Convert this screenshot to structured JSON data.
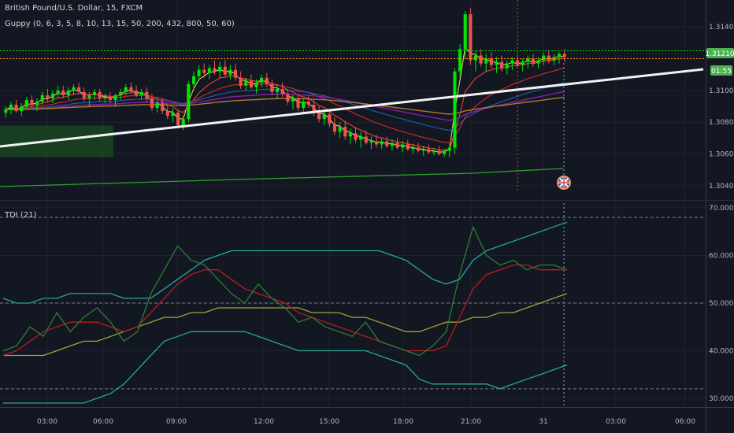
{
  "chart_data": [
    {
      "type": "candlestick",
      "title": "British Pound/U.S. Dollar, 15, FXCM",
      "indicator_label": "Guppy (0, 6, 3, 5, 8, 10, 13, 15, 50, 200, 432, 800, 50, 60)",
      "y_ticks": [
        "1.31400",
        "1.31000",
        "1.30800",
        "1.30600",
        "1.30400"
      ],
      "ylim": [
        1.3033,
        1.3155
      ],
      "price_label": "1.31210",
      "countdown_label": "01:55",
      "current_price": 1.3121,
      "x_ticks": [
        "03:00",
        "06:00",
        "09:00",
        "12:00",
        "15:00",
        "18:00",
        "21:00",
        "31",
        "03:00",
        "06:00"
      ],
      "candles_ohlc": [
        [
          1.3086,
          1.309,
          1.3083,
          1.3088
        ],
        [
          1.3088,
          1.3093,
          1.3085,
          1.3091
        ],
        [
          1.3091,
          1.3094,
          1.3086,
          1.3087
        ],
        [
          1.3087,
          1.3092,
          1.3084,
          1.309
        ],
        [
          1.309,
          1.3096,
          1.3088,
          1.3094
        ],
        [
          1.3094,
          1.3097,
          1.3089,
          1.3091
        ],
        [
          1.3091,
          1.3095,
          1.3087,
          1.3093
        ],
        [
          1.3093,
          1.3099,
          1.3091,
          1.3097
        ],
        [
          1.3097,
          1.3101,
          1.3093,
          1.3095
        ],
        [
          1.3095,
          1.31,
          1.3092,
          1.3098
        ],
        [
          1.3098,
          1.3103,
          1.3095,
          1.31
        ],
        [
          1.31,
          1.3103,
          1.3095,
          1.3097
        ],
        [
          1.3097,
          1.3102,
          1.3094,
          1.31
        ],
        [
          1.31,
          1.3104,
          1.3097,
          1.3102
        ],
        [
          1.3102,
          1.3105,
          1.3098,
          1.3099
        ],
        [
          1.3099,
          1.3102,
          1.3093,
          1.3095
        ],
        [
          1.3095,
          1.3099,
          1.309,
          1.3097
        ],
        [
          1.3097,
          1.3101,
          1.3094,
          1.3099
        ],
        [
          1.3099,
          1.3101,
          1.3093,
          1.3095
        ],
        [
          1.3095,
          1.3098,
          1.3092,
          1.3096
        ],
        [
          1.3096,
          1.3099,
          1.3092,
          1.3094
        ],
        [
          1.3094,
          1.3098,
          1.309,
          1.3097
        ],
        [
          1.3097,
          1.3101,
          1.3094,
          1.3099
        ],
        [
          1.3099,
          1.3104,
          1.3097,
          1.3102
        ],
        [
          1.3102,
          1.3105,
          1.3098,
          1.31
        ],
        [
          1.31,
          1.3103,
          1.3096,
          1.3097
        ],
        [
          1.3097,
          1.3101,
          1.3094,
          1.3099
        ],
        [
          1.3099,
          1.3102,
          1.3093,
          1.3095
        ],
        [
          1.3095,
          1.3098,
          1.3087,
          1.3089
        ],
        [
          1.3089,
          1.3094,
          1.3086,
          1.3092
        ],
        [
          1.3092,
          1.3095,
          1.3085,
          1.3087
        ],
        [
          1.3087,
          1.3091,
          1.3082,
          1.3084
        ],
        [
          1.3084,
          1.3089,
          1.308,
          1.3086
        ],
        [
          1.3086,
          1.3088,
          1.3076,
          1.3078
        ],
        [
          1.3078,
          1.3084,
          1.3075,
          1.3082
        ],
        [
          1.3082,
          1.3106,
          1.308,
          1.3104
        ],
        [
          1.3104,
          1.3112,
          1.3101,
          1.3109
        ],
        [
          1.3109,
          1.3116,
          1.3106,
          1.3113
        ],
        [
          1.3113,
          1.3117,
          1.3108,
          1.3111
        ],
        [
          1.3111,
          1.3116,
          1.3107,
          1.3114
        ],
        [
          1.3114,
          1.3119,
          1.311,
          1.3112
        ],
        [
          1.3112,
          1.3118,
          1.3108,
          1.3115
        ],
        [
          1.3115,
          1.3119,
          1.3109,
          1.311
        ],
        [
          1.311,
          1.3116,
          1.3107,
          1.3113
        ],
        [
          1.3113,
          1.3117,
          1.3106,
          1.3108
        ],
        [
          1.3108,
          1.3112,
          1.3101,
          1.3103
        ],
        [
          1.3103,
          1.3108,
          1.31,
          1.3106
        ],
        [
          1.3106,
          1.311,
          1.3101,
          1.3102
        ],
        [
          1.3102,
          1.3107,
          1.3098,
          1.3105
        ],
        [
          1.3105,
          1.311,
          1.3102,
          1.3108
        ],
        [
          1.3108,
          1.3111,
          1.3102,
          1.3104
        ],
        [
          1.3104,
          1.3107,
          1.3097,
          1.3099
        ],
        [
          1.3099,
          1.3104,
          1.3095,
          1.3101
        ],
        [
          1.3101,
          1.3105,
          1.3096,
          1.3098
        ],
        [
          1.3098,
          1.3101,
          1.3091,
          1.3093
        ],
        [
          1.3093,
          1.3097,
          1.3088,
          1.3095
        ],
        [
          1.3095,
          1.3098,
          1.3087,
          1.3089
        ],
        [
          1.3089,
          1.3095,
          1.3086,
          1.3093
        ],
        [
          1.3093,
          1.3097,
          1.3089,
          1.3091
        ],
        [
          1.3091,
          1.3094,
          1.3084,
          1.3086
        ],
        [
          1.3086,
          1.309,
          1.308,
          1.3082
        ],
        [
          1.3082,
          1.3087,
          1.3078,
          1.3085
        ],
        [
          1.3085,
          1.3088,
          1.3077,
          1.3079
        ],
        [
          1.3079,
          1.3083,
          1.3072,
          1.3074
        ],
        [
          1.3074,
          1.308,
          1.307,
          1.3077
        ],
        [
          1.3077,
          1.3081,
          1.3069,
          1.3071
        ],
        [
          1.3071,
          1.3076,
          1.3066,
          1.3073
        ],
        [
          1.3073,
          1.3077,
          1.3067,
          1.3069
        ],
        [
          1.3069,
          1.3074,
          1.3064,
          1.3071
        ],
        [
          1.3071,
          1.3075,
          1.3066,
          1.3067
        ],
        [
          1.3067,
          1.3071,
          1.3063,
          1.3068
        ],
        [
          1.3068,
          1.3072,
          1.3064,
          1.3066
        ],
        [
          1.3066,
          1.307,
          1.3063,
          1.3068
        ],
        [
          1.3068,
          1.3071,
          1.3064,
          1.3065
        ],
        [
          1.3065,
          1.3069,
          1.3062,
          1.3067
        ],
        [
          1.3067,
          1.307,
          1.3063,
          1.3064
        ],
        [
          1.3064,
          1.3068,
          1.3061,
          1.3066
        ],
        [
          1.3066,
          1.3069,
          1.3062,
          1.3063
        ],
        [
          1.3063,
          1.3066,
          1.306,
          1.3064
        ],
        [
          1.3064,
          1.3067,
          1.3061,
          1.3062
        ],
        [
          1.3062,
          1.3065,
          1.3059,
          1.3063
        ],
        [
          1.3063,
          1.3066,
          1.306,
          1.3061
        ],
        [
          1.3061,
          1.3064,
          1.3059,
          1.3062
        ],
        [
          1.3062,
          1.3065,
          1.3059,
          1.306
        ],
        [
          1.306,
          1.3063,
          1.3058,
          1.3062
        ],
        [
          1.3062,
          1.3066,
          1.3058,
          1.3064
        ],
        [
          1.3064,
          1.3114,
          1.306,
          1.3112
        ],
        [
          1.3112,
          1.3129,
          1.3108,
          1.3126
        ],
        [
          1.3126,
          1.315,
          1.312,
          1.3148
        ],
        [
          1.3148,
          1.3152,
          1.3116,
          1.3119
        ],
        [
          1.3119,
          1.3125,
          1.3112,
          1.3122
        ],
        [
          1.3122,
          1.3126,
          1.3115,
          1.3117
        ],
        [
          1.3117,
          1.3123,
          1.3112,
          1.312
        ],
        [
          1.312,
          1.3124,
          1.3114,
          1.3116
        ],
        [
          1.3116,
          1.3121,
          1.3111,
          1.3118
        ],
        [
          1.3118,
          1.3122,
          1.3112,
          1.3114
        ],
        [
          1.3114,
          1.3119,
          1.311,
          1.3117
        ],
        [
          1.3117,
          1.3121,
          1.3113,
          1.3119
        ],
        [
          1.3119,
          1.3123,
          1.3114,
          1.3116
        ],
        [
          1.3116,
          1.312,
          1.3112,
          1.3118
        ],
        [
          1.3118,
          1.3122,
          1.3114,
          1.312
        ],
        [
          1.312,
          1.3123,
          1.3115,
          1.3117
        ],
        [
          1.3117,
          1.3121,
          1.3114,
          1.3119
        ],
        [
          1.3119,
          1.3124,
          1.3116,
          1.3122
        ],
        [
          1.3122,
          1.3125,
          1.3117,
          1.3119
        ],
        [
          1.3119,
          1.3123,
          1.3116,
          1.3121
        ],
        [
          1.3121,
          1.3124,
          1.3117,
          1.3123
        ],
        [
          1.3123,
          1.3126,
          1.3118,
          1.3121
        ]
      ]
    },
    {
      "type": "line",
      "title": "TDI (21)",
      "y_ticks": [
        "70.0000",
        "60.0000",
        "50.0000",
        "40.0000",
        "30.0000"
      ],
      "ylim": [
        28.5,
        71
      ],
      "reference_lines": [
        68,
        50,
        32
      ],
      "series": [
        {
          "color": "#26a69a",
          "values": [
            51,
            50,
            50,
            51,
            51,
            52,
            52,
            52,
            52,
            51,
            51,
            51,
            53,
            55,
            57,
            59,
            60,
            61,
            61,
            61,
            61,
            61,
            61,
            61,
            61,
            61,
            61,
            61,
            61,
            60,
            59,
            57,
            55,
            54,
            55,
            59,
            61,
            62,
            63,
            64,
            65,
            66,
            67
          ]
        },
        {
          "color": "#26a69a",
          "values": [
            29,
            29,
            29,
            29,
            29,
            29,
            29,
            30,
            31,
            33,
            36,
            39,
            42,
            43,
            44,
            44,
            44,
            44,
            44,
            43,
            42,
            41,
            40,
            40,
            40,
            40,
            40,
            40,
            39,
            38,
            37,
            34,
            33,
            33,
            33,
            33,
            33,
            32,
            33,
            34,
            35,
            36,
            37
          ]
        },
        {
          "color": "#a1a43a",
          "values": [
            39,
            39,
            39,
            39,
            40,
            41,
            42,
            42,
            43,
            44,
            45,
            46,
            47,
            47,
            48,
            48,
            49,
            49,
            49,
            49,
            49,
            49,
            49,
            48,
            48,
            48,
            47,
            47,
            46,
            45,
            44,
            44,
            45,
            46,
            46,
            47,
            47,
            48,
            48,
            49,
            50,
            51,
            52
          ]
        },
        {
          "color": "#b71c1c",
          "values": [
            39,
            40,
            42,
            44,
            45,
            46,
            46,
            46,
            45,
            44,
            45,
            48,
            51,
            54,
            56,
            57,
            57,
            55,
            53,
            52,
            51,
            50,
            48,
            47,
            46,
            45,
            44,
            43,
            42,
            41,
            40,
            40,
            40,
            41,
            47,
            53,
            56,
            57,
            58,
            58,
            57,
            57,
            57
          ]
        },
        {
          "color": "#2e7d32",
          "values": [
            40,
            41,
            45,
            43,
            48,
            44,
            47,
            49,
            46,
            42,
            44,
            52,
            57,
            62,
            59,
            58,
            55,
            52,
            50,
            54,
            51,
            49,
            46,
            47,
            45,
            44,
            43,
            46,
            42,
            41,
            40,
            39,
            41,
            44,
            56,
            66,
            60,
            58,
            59,
            57,
            58,
            58,
            57
          ]
        }
      ]
    }
  ]
}
